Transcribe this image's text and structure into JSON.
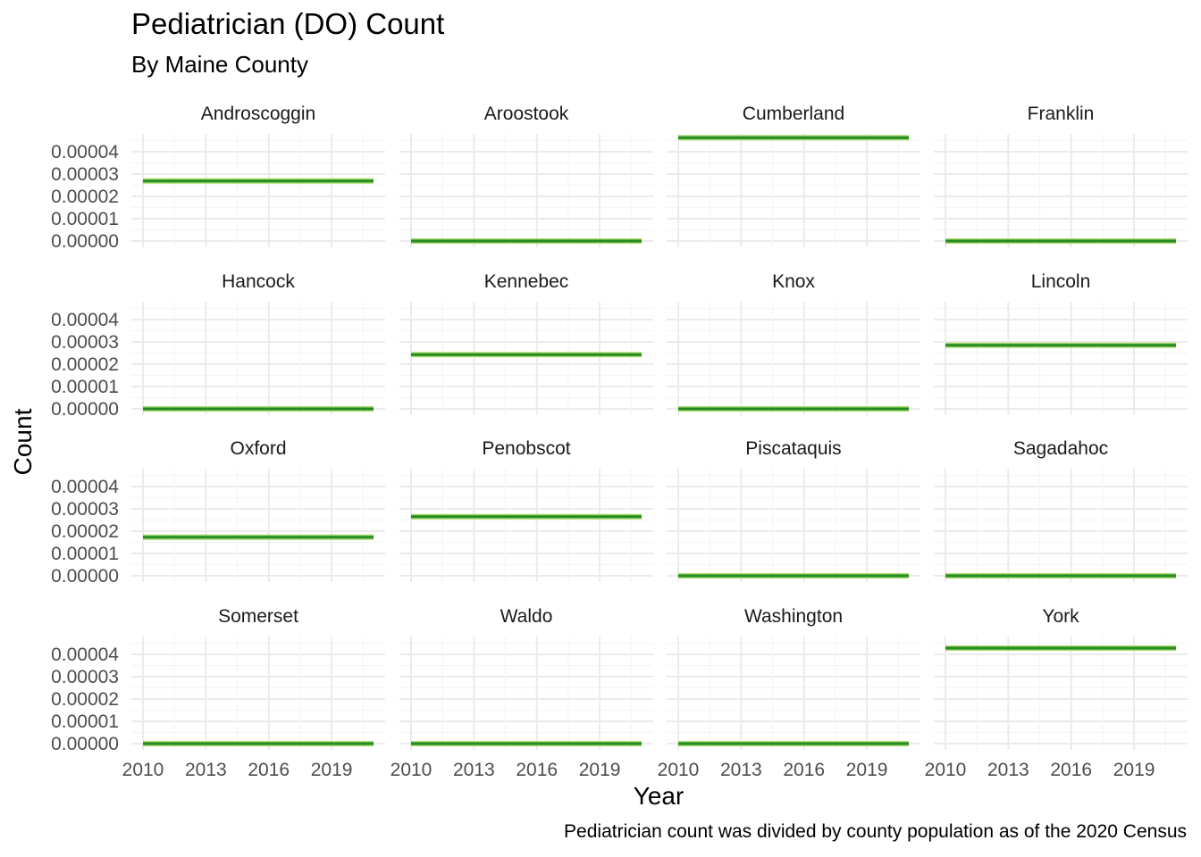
{
  "title": "Pediatrician (DO) Count",
  "subtitle": "By Maine County",
  "caption": "Pediatrician count was divided by county population as of the 2020 Census",
  "colors": {
    "line": "#228b22",
    "line_halo": "#a6d96a",
    "grid_major": "#ebebeb",
    "grid_minor": "#f5f5f5"
  },
  "chart_data": {
    "type": "line",
    "facet": "wrap",
    "xlabel": "Year",
    "ylabel": "Count",
    "xlim": [
      2010,
      2021
    ],
    "ylim": [
      0,
      4.63e-05
    ],
    "x_ticks": [
      "2010",
      "2013",
      "2016",
      "2019"
    ],
    "y_ticks": [
      "0.00000",
      "0.00001",
      "0.00002",
      "0.00003",
      "0.00004"
    ],
    "grid": true,
    "panels": [
      {
        "name": "Androscoggin",
        "x": [
          2010,
          2021
        ],
        "values": [
          2.69e-05,
          2.69e-05
        ]
      },
      {
        "name": "Aroostook",
        "x": [
          2010,
          2021
        ],
        "values": [
          0,
          0
        ]
      },
      {
        "name": "Cumberland",
        "x": [
          2010,
          2021
        ],
        "values": [
          4.63e-05,
          4.63e-05
        ]
      },
      {
        "name": "Franklin",
        "x": [
          2010,
          2021
        ],
        "values": [
          0,
          0
        ]
      },
      {
        "name": "Hancock",
        "x": [
          2010,
          2021
        ],
        "values": [
          0,
          0
        ]
      },
      {
        "name": "Kennebec",
        "x": [
          2010,
          2021
        ],
        "values": [
          2.43e-05,
          2.43e-05
        ]
      },
      {
        "name": "Knox",
        "x": [
          2010,
          2021
        ],
        "values": [
          0,
          0
        ]
      },
      {
        "name": "Lincoln",
        "x": [
          2010,
          2021
        ],
        "values": [
          2.85e-05,
          2.85e-05
        ]
      },
      {
        "name": "Oxford",
        "x": [
          2010,
          2021
        ],
        "values": [
          1.73e-05,
          1.73e-05
        ]
      },
      {
        "name": "Penobscot",
        "x": [
          2010,
          2021
        ],
        "values": [
          2.65e-05,
          2.65e-05
        ]
      },
      {
        "name": "Piscataquis",
        "x": [
          2010,
          2021
        ],
        "values": [
          0,
          0
        ]
      },
      {
        "name": "Sagadahoc",
        "x": [
          2010,
          2021
        ],
        "values": [
          0,
          0
        ]
      },
      {
        "name": "Somerset",
        "x": [
          2010,
          2021
        ],
        "values": [
          0,
          0
        ]
      },
      {
        "name": "Waldo",
        "x": [
          2010,
          2021
        ],
        "values": [
          0,
          0
        ]
      },
      {
        "name": "Washington",
        "x": [
          2010,
          2021
        ],
        "values": [
          0,
          0
        ]
      },
      {
        "name": "York",
        "x": [
          2010,
          2021
        ],
        "values": [
          4.28e-05,
          4.28e-05
        ]
      }
    ]
  }
}
